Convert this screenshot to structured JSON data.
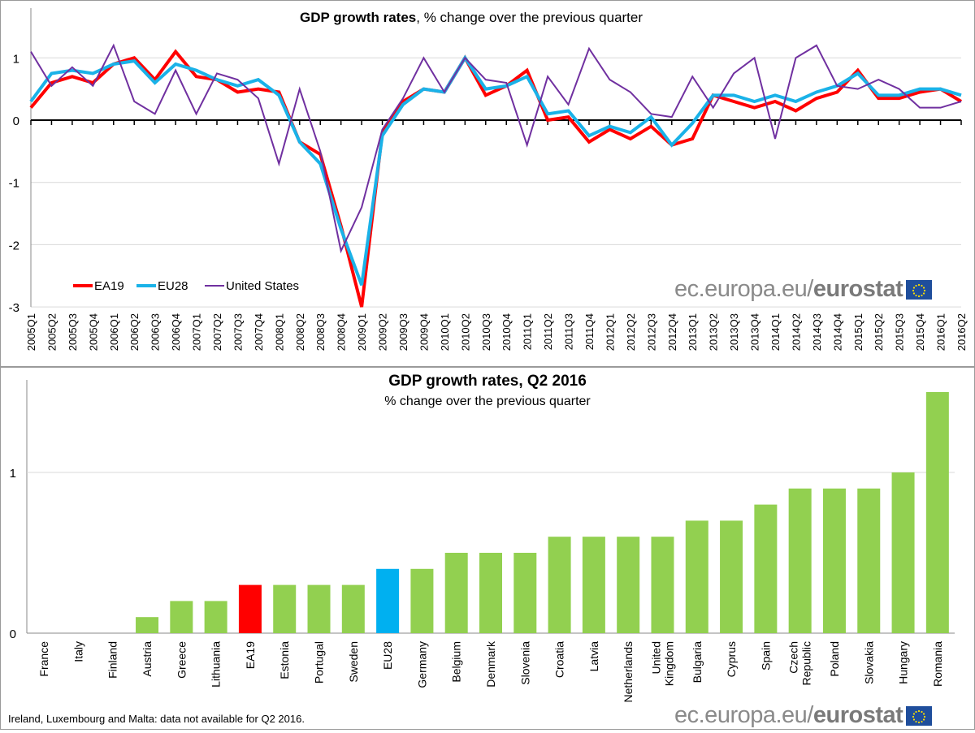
{
  "colors": {
    "ea19": "#ff0000",
    "eu28": "#1ab2e8",
    "us": "#7030a0",
    "bar": "#92d050",
    "bar_ea19": "#ff0000",
    "bar_eu28": "#00b0f0"
  },
  "chart_data": [
    {
      "type": "line",
      "title_bold": "GDP growth rates",
      "title_rest": ", % change over the previous quarter",
      "xlabel": "",
      "ylabel": "",
      "ylim": [
        -3,
        1.5
      ],
      "yticks": [
        1,
        0,
        -1,
        -2,
        -3
      ],
      "grid": true,
      "legend_position": "bottom-left",
      "x": [
        "2005Q1",
        "2005Q2",
        "2005Q3",
        "2005Q4",
        "2006Q1",
        "2006Q2",
        "2006Q3",
        "2006Q4",
        "2007Q1",
        "2007Q2",
        "2007Q3",
        "2007Q4",
        "2008Q1",
        "2008Q2",
        "2008Q3",
        "2008Q4",
        "2009Q1",
        "2009Q2",
        "2009Q3",
        "2009Q4",
        "2010Q1",
        "2010Q2",
        "2010Q3",
        "2010Q4",
        "2011Q1",
        "2011Q2",
        "2011Q3",
        "2011Q4",
        "2012Q1",
        "2012Q2",
        "2012Q3",
        "2012Q4",
        "2013Q1",
        "2013Q2",
        "2013Q3",
        "2013Q4",
        "2014Q1",
        "2014Q2",
        "2014Q3",
        "2014Q4",
        "2015Q1",
        "2015Q2",
        "2015Q3",
        "2015Q4",
        "2016Q1",
        "2016Q2"
      ],
      "series": [
        {
          "name": "EA19",
          "color_key": "ea19",
          "values": [
            0.2,
            0.6,
            0.7,
            0.6,
            0.9,
            1.0,
            0.65,
            1.1,
            0.7,
            0.65,
            0.45,
            0.5,
            0.45,
            -0.35,
            -0.55,
            -1.7,
            -3.0,
            -0.2,
            0.3,
            0.5,
            0.45,
            1.0,
            0.4,
            0.55,
            0.8,
            0.0,
            0.05,
            -0.35,
            -0.15,
            -0.3,
            -0.1,
            -0.4,
            -0.3,
            0.4,
            0.3,
            0.2,
            0.3,
            0.15,
            0.35,
            0.45,
            0.8,
            0.35,
            0.35,
            0.45,
            0.5,
            0.3
          ]
        },
        {
          "name": "EU28",
          "color_key": "eu28",
          "values": [
            0.3,
            0.75,
            0.8,
            0.75,
            0.9,
            0.95,
            0.6,
            0.9,
            0.8,
            0.65,
            0.55,
            0.65,
            0.4,
            -0.35,
            -0.7,
            -1.75,
            -2.65,
            -0.25,
            0.25,
            0.5,
            0.45,
            1.0,
            0.5,
            0.55,
            0.7,
            0.1,
            0.15,
            -0.25,
            -0.1,
            -0.2,
            0.05,
            -0.4,
            -0.05,
            0.4,
            0.4,
            0.3,
            0.4,
            0.3,
            0.45,
            0.55,
            0.75,
            0.4,
            0.4,
            0.5,
            0.5,
            0.4
          ]
        },
        {
          "name": "United States",
          "color_key": "us",
          "values": [
            1.1,
            0.55,
            0.85,
            0.55,
            1.2,
            0.3,
            0.1,
            0.8,
            0.1,
            0.75,
            0.65,
            0.35,
            -0.7,
            0.5,
            -0.5,
            -2.1,
            -1.4,
            -0.15,
            0.35,
            1.0,
            0.45,
            1.0,
            0.65,
            0.6,
            -0.4,
            0.7,
            0.25,
            1.15,
            0.65,
            0.45,
            0.1,
            0.05,
            0.7,
            0.2,
            0.75,
            1.0,
            -0.3,
            1.0,
            1.2,
            0.55,
            0.5,
            0.65,
            0.5,
            0.2,
            0.2,
            0.3
          ]
        }
      ]
    },
    {
      "type": "bar",
      "title": "GDP growth rates, Q2 2016",
      "subtitle": "% change over the previous quarter",
      "xlabel": "",
      "ylabel": "",
      "ylim": [
        0,
        1.5
      ],
      "yticks": [
        0,
        1
      ],
      "categories": [
        "France",
        "Italy",
        "Finland",
        "Austria",
        "Greece",
        "Lithuania",
        "EA19",
        "Estonia",
        "Portugal",
        "Sweden",
        "EU28",
        "Germany",
        "Belgium",
        "Denmark",
        "Slovenia",
        "Croatia",
        "Latvia",
        "Netherlands",
        "United Kingdom",
        "Bulgaria",
        "Cyprus",
        "Spain",
        "Czech Republic",
        "Poland",
        "Slovakia",
        "Hungary",
        "Romania"
      ],
      "values": [
        0,
        0,
        0,
        0.1,
        0.2,
        0.2,
        0.3,
        0.3,
        0.3,
        0.3,
        0.4,
        0.4,
        0.5,
        0.5,
        0.5,
        0.6,
        0.6,
        0.6,
        0.6,
        0.7,
        0.7,
        0.8,
        0.9,
        0.9,
        0.9,
        1.0,
        1.5
      ],
      "highlight": {
        "EA19": "bar_ea19",
        "EU28": "bar_eu28"
      }
    }
  ],
  "footnote": "Ireland, Luxembourg and Malta: data not available for Q2 2016.",
  "logo": {
    "domain": "ec.europa.eu/",
    "brand": "eurostat"
  }
}
